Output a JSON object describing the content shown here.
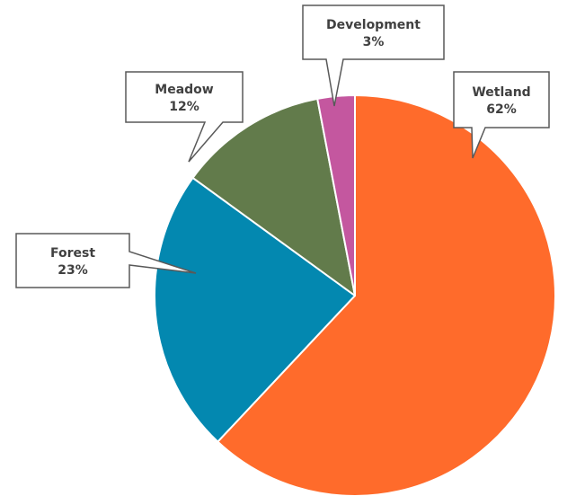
{
  "chart_data": {
    "type": "pie",
    "title": "",
    "slices": [
      {
        "label": "Wetland",
        "value": 62,
        "percent_label": "62%",
        "color": "#FF6B2B"
      },
      {
        "label": "Forest",
        "value": 23,
        "percent_label": "23%",
        "color": "#0388B0"
      },
      {
        "label": "Meadow",
        "value": 12,
        "percent_label": "12%",
        "color": "#627B4B"
      },
      {
        "label": "Development",
        "value": 3,
        "percent_label": "3%",
        "color": "#C4579F"
      }
    ],
    "slice_order": "clockwise from top",
    "legend": "none",
    "data_labels": "callouts"
  }
}
